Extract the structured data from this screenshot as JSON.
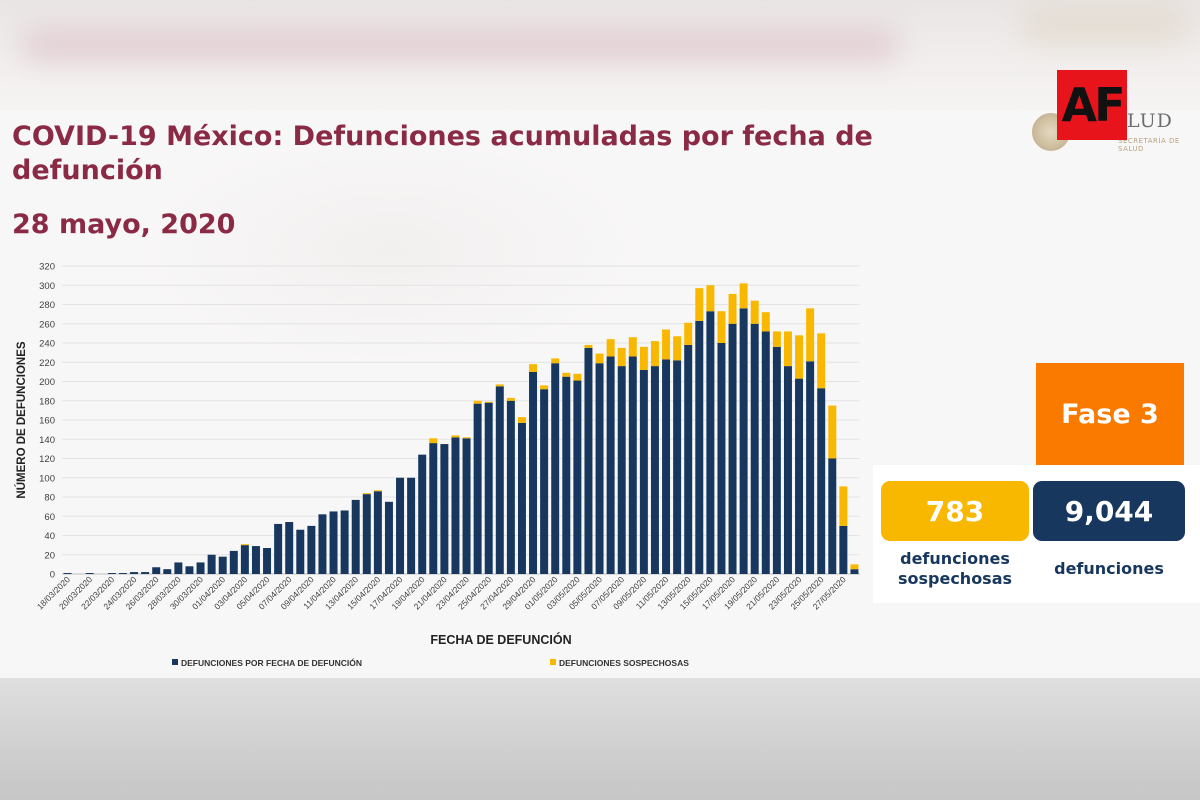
{
  "title": "COVID-19 México: Defunciones acumuladas por fecha de defunción",
  "date": "28 mayo, 2020",
  "watermark_logo": "AF",
  "agency_logo_text": "LUD",
  "agency_logo_subtext": "SECRETARÍA DE SALUD",
  "phase": "Fase 3",
  "stats": {
    "suspected_value": "783",
    "suspected_label": "defunciones sospechosas",
    "total_value": "9,044",
    "total_label": "defunciones"
  },
  "colors": {
    "confirmed": "#17375e",
    "suspected": "#f9b800",
    "title": "#8a2a44",
    "phase": "#fa7a00"
  },
  "chart_data": {
    "type": "bar",
    "stacked": true,
    "xlabel": "FECHA DE DEFUNCIÓN",
    "ylabel": "NÚMERO DE DEFUNCIONES",
    "ylim": [
      0,
      320
    ],
    "yticks": [
      0,
      20,
      40,
      60,
      80,
      100,
      120,
      140,
      160,
      180,
      200,
      220,
      240,
      260,
      280,
      300,
      320
    ],
    "grid": true,
    "legend_position": "bottom",
    "tick_labels": [
      "18/03/2020",
      "20/03/2020",
      "22/03/2020",
      "24/03/2020",
      "26/03/2020",
      "28/03/2020",
      "30/03/2020",
      "01/04/2020",
      "03/04/2020",
      "05/04/2020",
      "07/04/2020",
      "09/04/2020",
      "11/04/2020",
      "13/04/2020",
      "15/04/2020",
      "17/04/2020",
      "19/04/2020",
      "21/04/2020",
      "23/04/2020",
      "25/04/2020",
      "27/04/2020",
      "29/04/2020",
      "01/05/2020",
      "03/05/2020",
      "05/05/2020",
      "07/05/2020",
      "09/05/2020",
      "11/05/2020",
      "13/05/2020",
      "15/05/2020",
      "17/05/2020",
      "19/05/2020",
      "21/05/2020",
      "23/05/2020",
      "25/05/2020",
      "27/05/2020"
    ],
    "series": [
      {
        "name": "DEFUNCIONES POR FECHA DE DEFUNCIÓN",
        "values": [
          1,
          0,
          1,
          0,
          1,
          1,
          2,
          2,
          7,
          5,
          12,
          8,
          12,
          20,
          18,
          24,
          30,
          29,
          27,
          52,
          54,
          46,
          50,
          62,
          65,
          66,
          77,
          83,
          86,
          75,
          100,
          100,
          124,
          136,
          135,
          142,
          141,
          177,
          178,
          195,
          180,
          157,
          210,
          192,
          219,
          205,
          201,
          235,
          219,
          226,
          216,
          226,
          212,
          216,
          223,
          222,
          238,
          263,
          273,
          240,
          260,
          276,
          260,
          252,
          236,
          216,
          203,
          221,
          193,
          120,
          50,
          5
        ]
      },
      {
        "name": "DEFUNCIONES SOSPECHOSAS",
        "values": [
          0,
          0,
          0,
          0,
          0,
          0,
          0,
          0,
          0,
          0,
          0,
          0,
          0,
          0,
          0,
          0,
          1,
          0,
          0,
          0,
          0,
          0,
          0,
          0,
          0,
          0,
          0,
          1,
          1,
          0,
          0,
          0,
          0,
          5,
          0,
          2,
          1,
          3,
          1,
          2,
          3,
          6,
          8,
          4,
          5,
          4,
          7,
          3,
          10,
          18,
          19,
          20,
          24,
          26,
          31,
          25,
          23,
          34,
          27,
          33,
          31,
          26,
          24,
          20,
          16,
          36,
          45,
          55,
          57,
          55,
          41,
          5
        ]
      }
    ]
  }
}
